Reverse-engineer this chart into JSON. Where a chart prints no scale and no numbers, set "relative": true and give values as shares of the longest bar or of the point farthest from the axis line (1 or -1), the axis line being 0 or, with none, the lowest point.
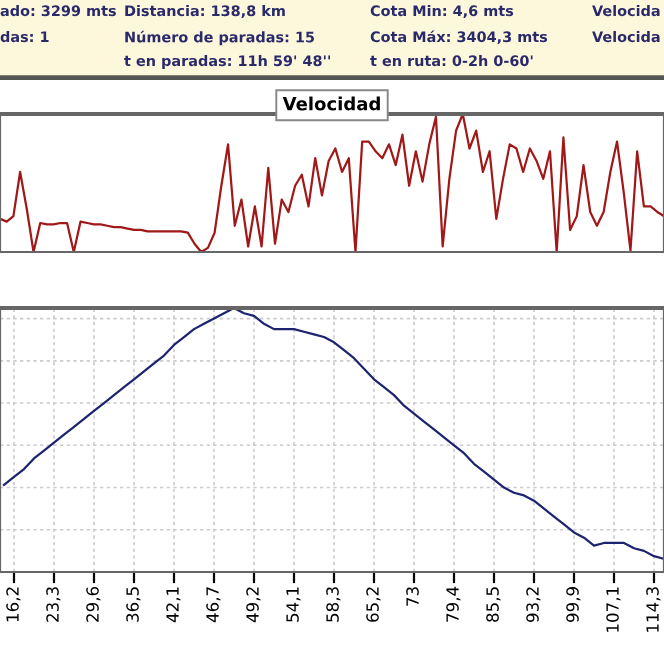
{
  "chart_data": [
    {
      "type": "other",
      "annotations": [
        "ado: 3299 mts",
        "Distancia: 138,8 km",
        "Cota Min: 4,6 mts",
        "Velocida",
        "das: 1",
        "Número de paradas: 15",
        "Cota Máx: 3404,3 mts",
        "Velocida",
        "t en paradas: 11h 59' 48''",
        "t en ruta: 0-2h 0-60'"
      ]
    },
    {
      "type": "line",
      "title": "Velocidad",
      "relative": true,
      "grid": false,
      "tick_labels": false,
      "categories": [
        null,
        null,
        null,
        null,
        null,
        null,
        null,
        null,
        null,
        null,
        null,
        null,
        null,
        null,
        null,
        null,
        null,
        null,
        null,
        null,
        null,
        null,
        null,
        null,
        null,
        null,
        null,
        null,
        null,
        null,
        null,
        null,
        null,
        null,
        null,
        null,
        null,
        null,
        null,
        null,
        null,
        null,
        null,
        null,
        null,
        null,
        null,
        null,
        null,
        null,
        null,
        null,
        null,
        null,
        null,
        null,
        null,
        null,
        null,
        null,
        null,
        null,
        null,
        null,
        null,
        null,
        null,
        null,
        null,
        null,
        null,
        null,
        null,
        null,
        null,
        null,
        null,
        null,
        null,
        null,
        null,
        null,
        null,
        null,
        null,
        null,
        null,
        null,
        null,
        null,
        null,
        null,
        null,
        null,
        null,
        null,
        null,
        null,
        null,
        null
      ],
      "series": [
        {
          "color": "#a01818",
          "values": [
            0.24,
            0.22,
            0.26,
            0.58,
            0.31,
            0,
            0.21,
            0.2,
            0.2,
            0.21,
            0.21,
            0,
            0.22,
            0.21,
            0.2,
            0.2,
            0.19,
            0.18,
            0.18,
            0.17,
            0.16,
            0.16,
            0.15,
            0.15,
            0.15,
            0.15,
            0.15,
            0.15,
            0.14,
            0.06,
            0,
            0.03,
            0.14,
            0.48,
            0.78,
            0.19,
            0.38,
            0.04,
            0.33,
            0.04,
            0.61,
            0.06,
            0.38,
            0.29,
            0.48,
            0.56,
            0.33,
            0.68,
            0.41,
            0.66,
            0.75,
            0.58,
            0.68,
            0,
            0.8,
            0.8,
            0.73,
            0.68,
            0.78,
            0.63,
            0.85,
            0.48,
            0.73,
            0.51,
            0.78,
            0.98,
            0.04,
            0.53,
            0.88,
            1,
            0.75,
            0.88,
            0.58,
            0.73,
            0.24,
            0.53,
            0.78,
            0.75,
            0.58,
            0.75,
            0.66,
            0.53,
            0.73,
            0,
            0.83,
            0.16,
            0.26,
            0.63,
            0.29,
            0.19,
            0.29,
            0.58,
            0.8,
            0.43,
            0.01,
            0.73,
            0.33,
            0.33,
            0.29,
            0.26
          ]
        }
      ]
    },
    {
      "type": "line",
      "relative": true,
      "grid": true,
      "tick_labels": "x",
      "categories": [
        null,
        "16,2",
        null,
        null,
        null,
        "23,3",
        null,
        null,
        null,
        "29,6",
        null,
        null,
        null,
        "36,5",
        null,
        null,
        null,
        "42,1",
        null,
        null,
        null,
        "46,7",
        null,
        null,
        null,
        "49,2",
        null,
        null,
        null,
        "54,1",
        null,
        null,
        null,
        "58,3",
        null,
        null,
        null,
        "65,2",
        null,
        null,
        null,
        "73",
        null,
        null,
        null,
        "79,4",
        null,
        null,
        null,
        "85,5",
        null,
        null,
        null,
        "93,2",
        null,
        null,
        null,
        "99,9",
        null,
        null,
        null,
        "107,1",
        null,
        null,
        null,
        "114,3",
        null
      ],
      "series": [
        {
          "color": "#1c2470",
          "values": [
            0.33,
            0.36,
            0.39,
            0.43,
            0.46,
            0.49,
            0.52,
            0.55,
            0.58,
            0.61,
            0.64,
            0.67,
            0.7,
            0.73,
            0.76,
            0.79,
            0.82,
            0.86,
            0.89,
            0.92,
            0.94,
            0.96,
            0.98,
            1,
            0.98,
            0.97,
            0.94,
            0.92,
            0.92,
            0.92,
            0.91,
            0.9,
            0.89,
            0.87,
            0.84,
            0.81,
            0.77,
            0.73,
            0.7,
            0.67,
            0.63,
            0.6,
            0.57,
            0.54,
            0.51,
            0.48,
            0.45,
            0.41,
            0.38,
            0.35,
            0.32,
            0.3,
            0.29,
            0.27,
            0.24,
            0.21,
            0.18,
            0.15,
            0.13,
            0.1,
            0.11,
            0.11,
            0.11,
            0.09,
            0.08,
            0.06,
            0.05
          ]
        }
      ]
    }
  ]
}
